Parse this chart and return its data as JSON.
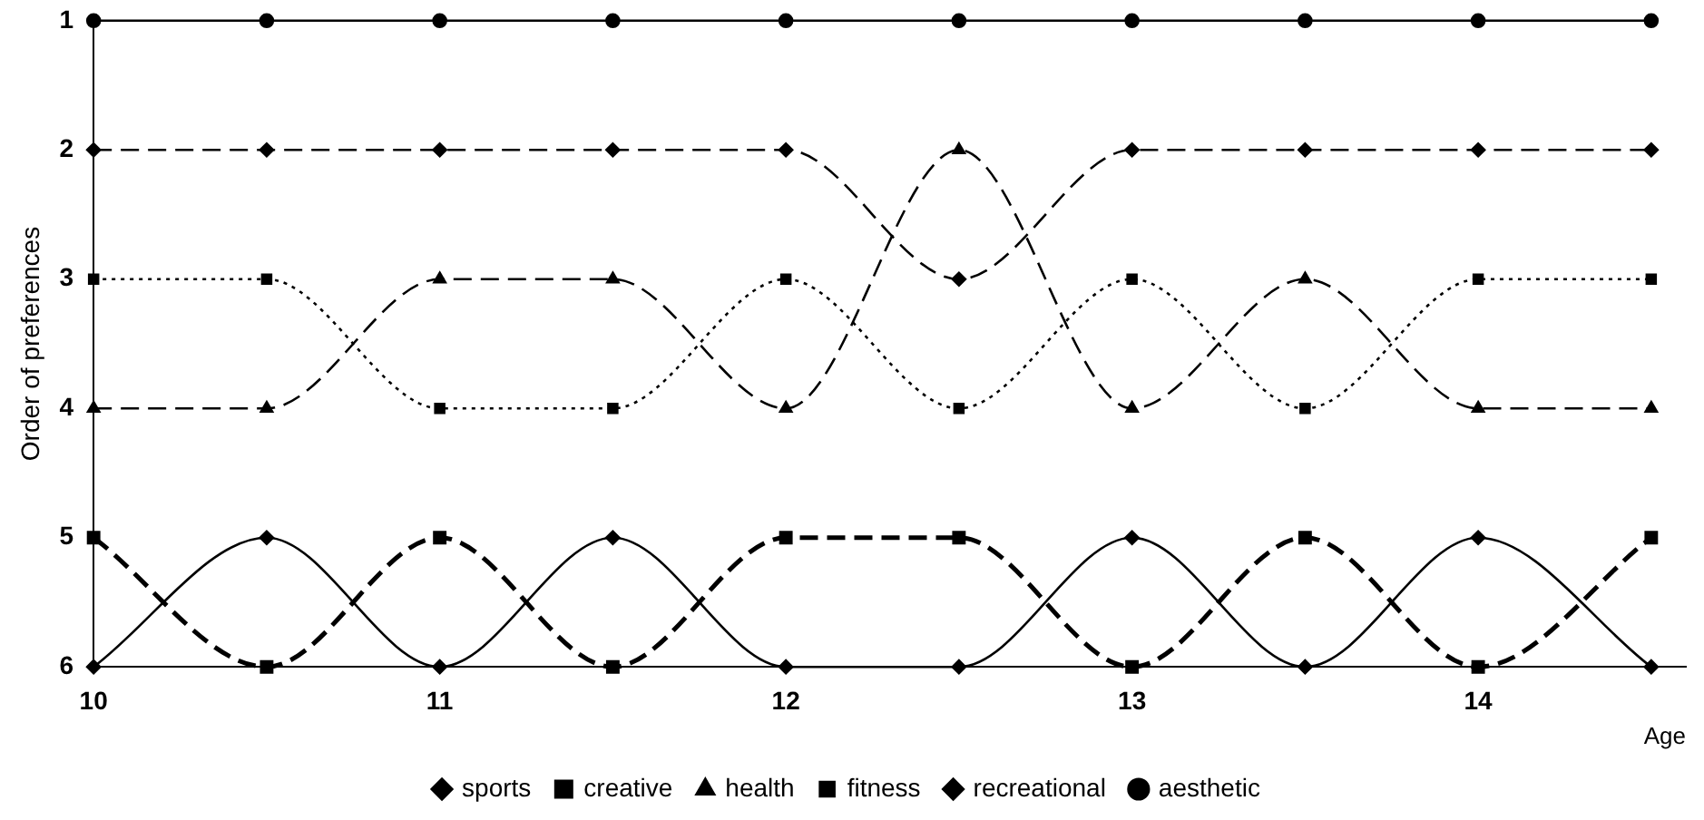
{
  "chart_data": {
    "type": "line",
    "xlabel": "Age",
    "ylabel": "Order of preferences",
    "x": [
      10,
      10.5,
      11,
      11.5,
      12,
      12.5,
      13,
      13.5,
      14,
      14.5
    ],
    "xlim": [
      10,
      14.6
    ],
    "xticks": [
      10,
      11,
      12,
      13,
      14
    ],
    "ylim": [
      6,
      1
    ],
    "yticks": [
      1,
      2,
      3,
      4,
      5,
      6
    ],
    "grid": false,
    "legend": "bottom",
    "series": [
      {
        "name": "aesthetic",
        "color": "#000000",
        "marker": "circle",
        "line_style": "solid",
        "values": [
          1,
          1,
          1,
          1,
          1,
          1,
          1,
          1,
          1,
          1
        ]
      },
      {
        "name": "recreational",
        "color": "#000000",
        "marker": "diamond",
        "line_style": "dashed",
        "values": [
          2,
          2,
          2,
          2,
          2,
          3,
          2,
          2,
          2,
          2
        ]
      },
      {
        "name": "fitness",
        "color": "#000000",
        "marker": "square",
        "line_style": "dotted",
        "values": [
          3,
          3,
          4,
          4,
          3,
          4,
          3,
          4,
          3,
          3
        ]
      },
      {
        "name": "health",
        "color": "#000000",
        "marker": "triangle",
        "line_style": "dashed",
        "values": [
          4,
          4,
          3,
          3,
          4,
          2,
          4,
          3,
          4,
          4
        ]
      },
      {
        "name": "creative",
        "color": "#000000",
        "marker": "square",
        "line_style": "dashed",
        "values": [
          5,
          6,
          5,
          6,
          5,
          5,
          6,
          5,
          6,
          5
        ]
      },
      {
        "name": "sports",
        "color": "#000000",
        "marker": "diamond",
        "line_style": "solid",
        "values": [
          6,
          5,
          6,
          5,
          6,
          6,
          5,
          6,
          5,
          6
        ]
      }
    ]
  }
}
